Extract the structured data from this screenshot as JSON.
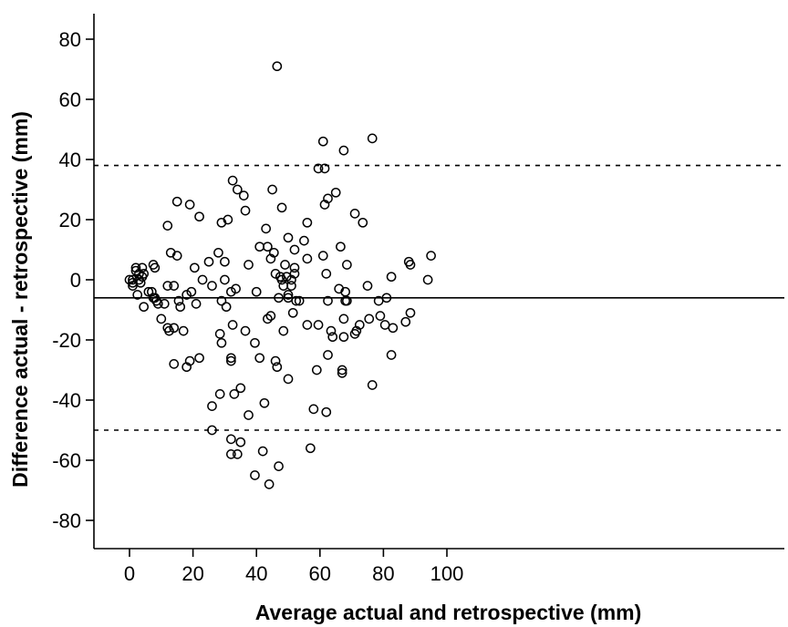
{
  "chart_data": {
    "type": "scatter",
    "xlabel": "Average actual and retrospective (mm)",
    "ylabel": "Difference actual - retrospective (mm)",
    "xlim": [
      -5,
      105
    ],
    "ylim": [
      -90,
      90
    ],
    "x_ticks": [
      0,
      20,
      40,
      60,
      80,
      100
    ],
    "y_ticks": [
      -80,
      -60,
      -40,
      -20,
      0,
      20,
      40,
      60,
      80
    ],
    "grid": false,
    "marker": "open-circle",
    "mean_line": -6,
    "upper_limit": 38,
    "lower_limit": -50,
    "points": [
      [
        0,
        0
      ],
      [
        1,
        0
      ],
      [
        1,
        -1
      ],
      [
        1,
        -2
      ],
      [
        2,
        4
      ],
      [
        2,
        3
      ],
      [
        2.5,
        -5
      ],
      [
        3,
        2
      ],
      [
        3,
        0
      ],
      [
        3.5,
        -1
      ],
      [
        4,
        4
      ],
      [
        4,
        1
      ],
      [
        4.5,
        2
      ],
      [
        4.5,
        -9
      ],
      [
        6,
        -4
      ],
      [
        7,
        -4
      ],
      [
        7.5,
        5
      ],
      [
        7.5,
        -6
      ],
      [
        8,
        4
      ],
      [
        8,
        -6
      ],
      [
        8.5,
        -7
      ],
      [
        9,
        -8
      ],
      [
        10,
        -13
      ],
      [
        11,
        -8
      ],
      [
        12,
        18
      ],
      [
        12,
        -2
      ],
      [
        12,
        -16
      ],
      [
        12.5,
        -17
      ],
      [
        13,
        9
      ],
      [
        14,
        -2
      ],
      [
        14,
        -16
      ],
      [
        14,
        -28
      ],
      [
        15,
        26
      ],
      [
        15,
        8
      ],
      [
        15.5,
        -7
      ],
      [
        16,
        -9
      ],
      [
        17,
        -17
      ],
      [
        18,
        -5
      ],
      [
        18,
        -29
      ],
      [
        19,
        25
      ],
      [
        19,
        -27
      ],
      [
        19.5,
        -4
      ],
      [
        20.5,
        4
      ],
      [
        21,
        -8
      ],
      [
        22,
        -26
      ],
      [
        22,
        21
      ],
      [
        23,
        0
      ],
      [
        25,
        6
      ],
      [
        26,
        -2
      ],
      [
        26,
        -42
      ],
      [
        26,
        -50
      ],
      [
        28,
        9
      ],
      [
        28.5,
        -18
      ],
      [
        28.5,
        -38
      ],
      [
        29,
        19
      ],
      [
        29,
        -7
      ],
      [
        29,
        -21
      ],
      [
        30,
        6
      ],
      [
        30,
        0
      ],
      [
        30.5,
        -9
      ],
      [
        31,
        20
      ],
      [
        32,
        -4
      ],
      [
        32,
        -26
      ],
      [
        32,
        -27
      ],
      [
        32,
        -53
      ],
      [
        32,
        -58
      ],
      [
        32.5,
        33
      ],
      [
        32.5,
        -15
      ],
      [
        33,
        -38
      ],
      [
        33.5,
        -3
      ],
      [
        34,
        -58
      ],
      [
        34,
        30
      ],
      [
        35,
        -36
      ],
      [
        35,
        -54
      ],
      [
        36,
        28
      ],
      [
        36.5,
        23
      ],
      [
        36.5,
        -17
      ],
      [
        37.5,
        5
      ],
      [
        37.5,
        -45
      ],
      [
        39.5,
        -21
      ],
      [
        39.5,
        -65
      ],
      [
        40,
        -4
      ],
      [
        41,
        11
      ],
      [
        41,
        -26
      ],
      [
        42,
        -57
      ],
      [
        42.5,
        -41
      ],
      [
        43,
        17
      ],
      [
        43.5,
        11
      ],
      [
        43.5,
        -13
      ],
      [
        44,
        -68
      ],
      [
        44.5,
        7
      ],
      [
        45,
        30
      ],
      [
        44.5,
        -12
      ],
      [
        45.5,
        9
      ],
      [
        46,
        -27
      ],
      [
        46,
        2
      ],
      [
        46.5,
        71
      ],
      [
        46.5,
        -29
      ],
      [
        47,
        -62
      ],
      [
        47,
        -6
      ],
      [
        47.5,
        1
      ],
      [
        48,
        24
      ],
      [
        48,
        0
      ],
      [
        48.5,
        -2
      ],
      [
        48.5,
        -17
      ],
      [
        49,
        5
      ],
      [
        49.5,
        1
      ],
      [
        50,
        -5
      ],
      [
        50,
        -6
      ],
      [
        50,
        -33
      ],
      [
        50,
        14
      ],
      [
        51,
        -2
      ],
      [
        51,
        0
      ],
      [
        51.5,
        -11
      ],
      [
        52,
        2
      ],
      [
        52,
        4
      ],
      [
        52,
        10
      ],
      [
        52.5,
        -7
      ],
      [
        53.5,
        -7
      ],
      [
        55,
        13
      ],
      [
        56,
        19
      ],
      [
        56,
        7
      ],
      [
        56,
        -15
      ],
      [
        57,
        -56
      ],
      [
        58,
        -43
      ],
      [
        59,
        -30
      ],
      [
        59.5,
        37
      ],
      [
        59.5,
        -15
      ],
      [
        61,
        8
      ],
      [
        61,
        46
      ],
      [
        61.5,
        37
      ],
      [
        61.5,
        25
      ],
      [
        62,
        2
      ],
      [
        62,
        -44
      ],
      [
        62.5,
        27
      ],
      [
        62.5,
        -7
      ],
      [
        62.5,
        -25
      ],
      [
        63.5,
        -17
      ],
      [
        64,
        -19
      ],
      [
        65,
        29
      ],
      [
        66,
        -3
      ],
      [
        66.5,
        11
      ],
      [
        67,
        -31
      ],
      [
        67,
        -30
      ],
      [
        67.5,
        43
      ],
      [
        67.5,
        -13
      ],
      [
        67.5,
        -19
      ],
      [
        68,
        -7
      ],
      [
        68,
        -4
      ],
      [
        68.5,
        5
      ],
      [
        68.5,
        -7
      ],
      [
        71,
        22
      ],
      [
        71,
        -18
      ],
      [
        71.5,
        -17
      ],
      [
        72.5,
        -15
      ],
      [
        73.5,
        19
      ],
      [
        75,
        -2
      ],
      [
        75.5,
        -13
      ],
      [
        76.5,
        47
      ],
      [
        76.5,
        -35
      ],
      [
        78.5,
        -7
      ],
      [
        79,
        -12
      ],
      [
        80.5,
        -15
      ],
      [
        81,
        -6
      ],
      [
        82.5,
        1
      ],
      [
        82.5,
        -25
      ],
      [
        83,
        -16
      ],
      [
        87,
        -14
      ],
      [
        88,
        6
      ],
      [
        88.5,
        5
      ],
      [
        88.5,
        -11
      ],
      [
        94,
        0
      ],
      [
        95,
        8
      ]
    ]
  }
}
